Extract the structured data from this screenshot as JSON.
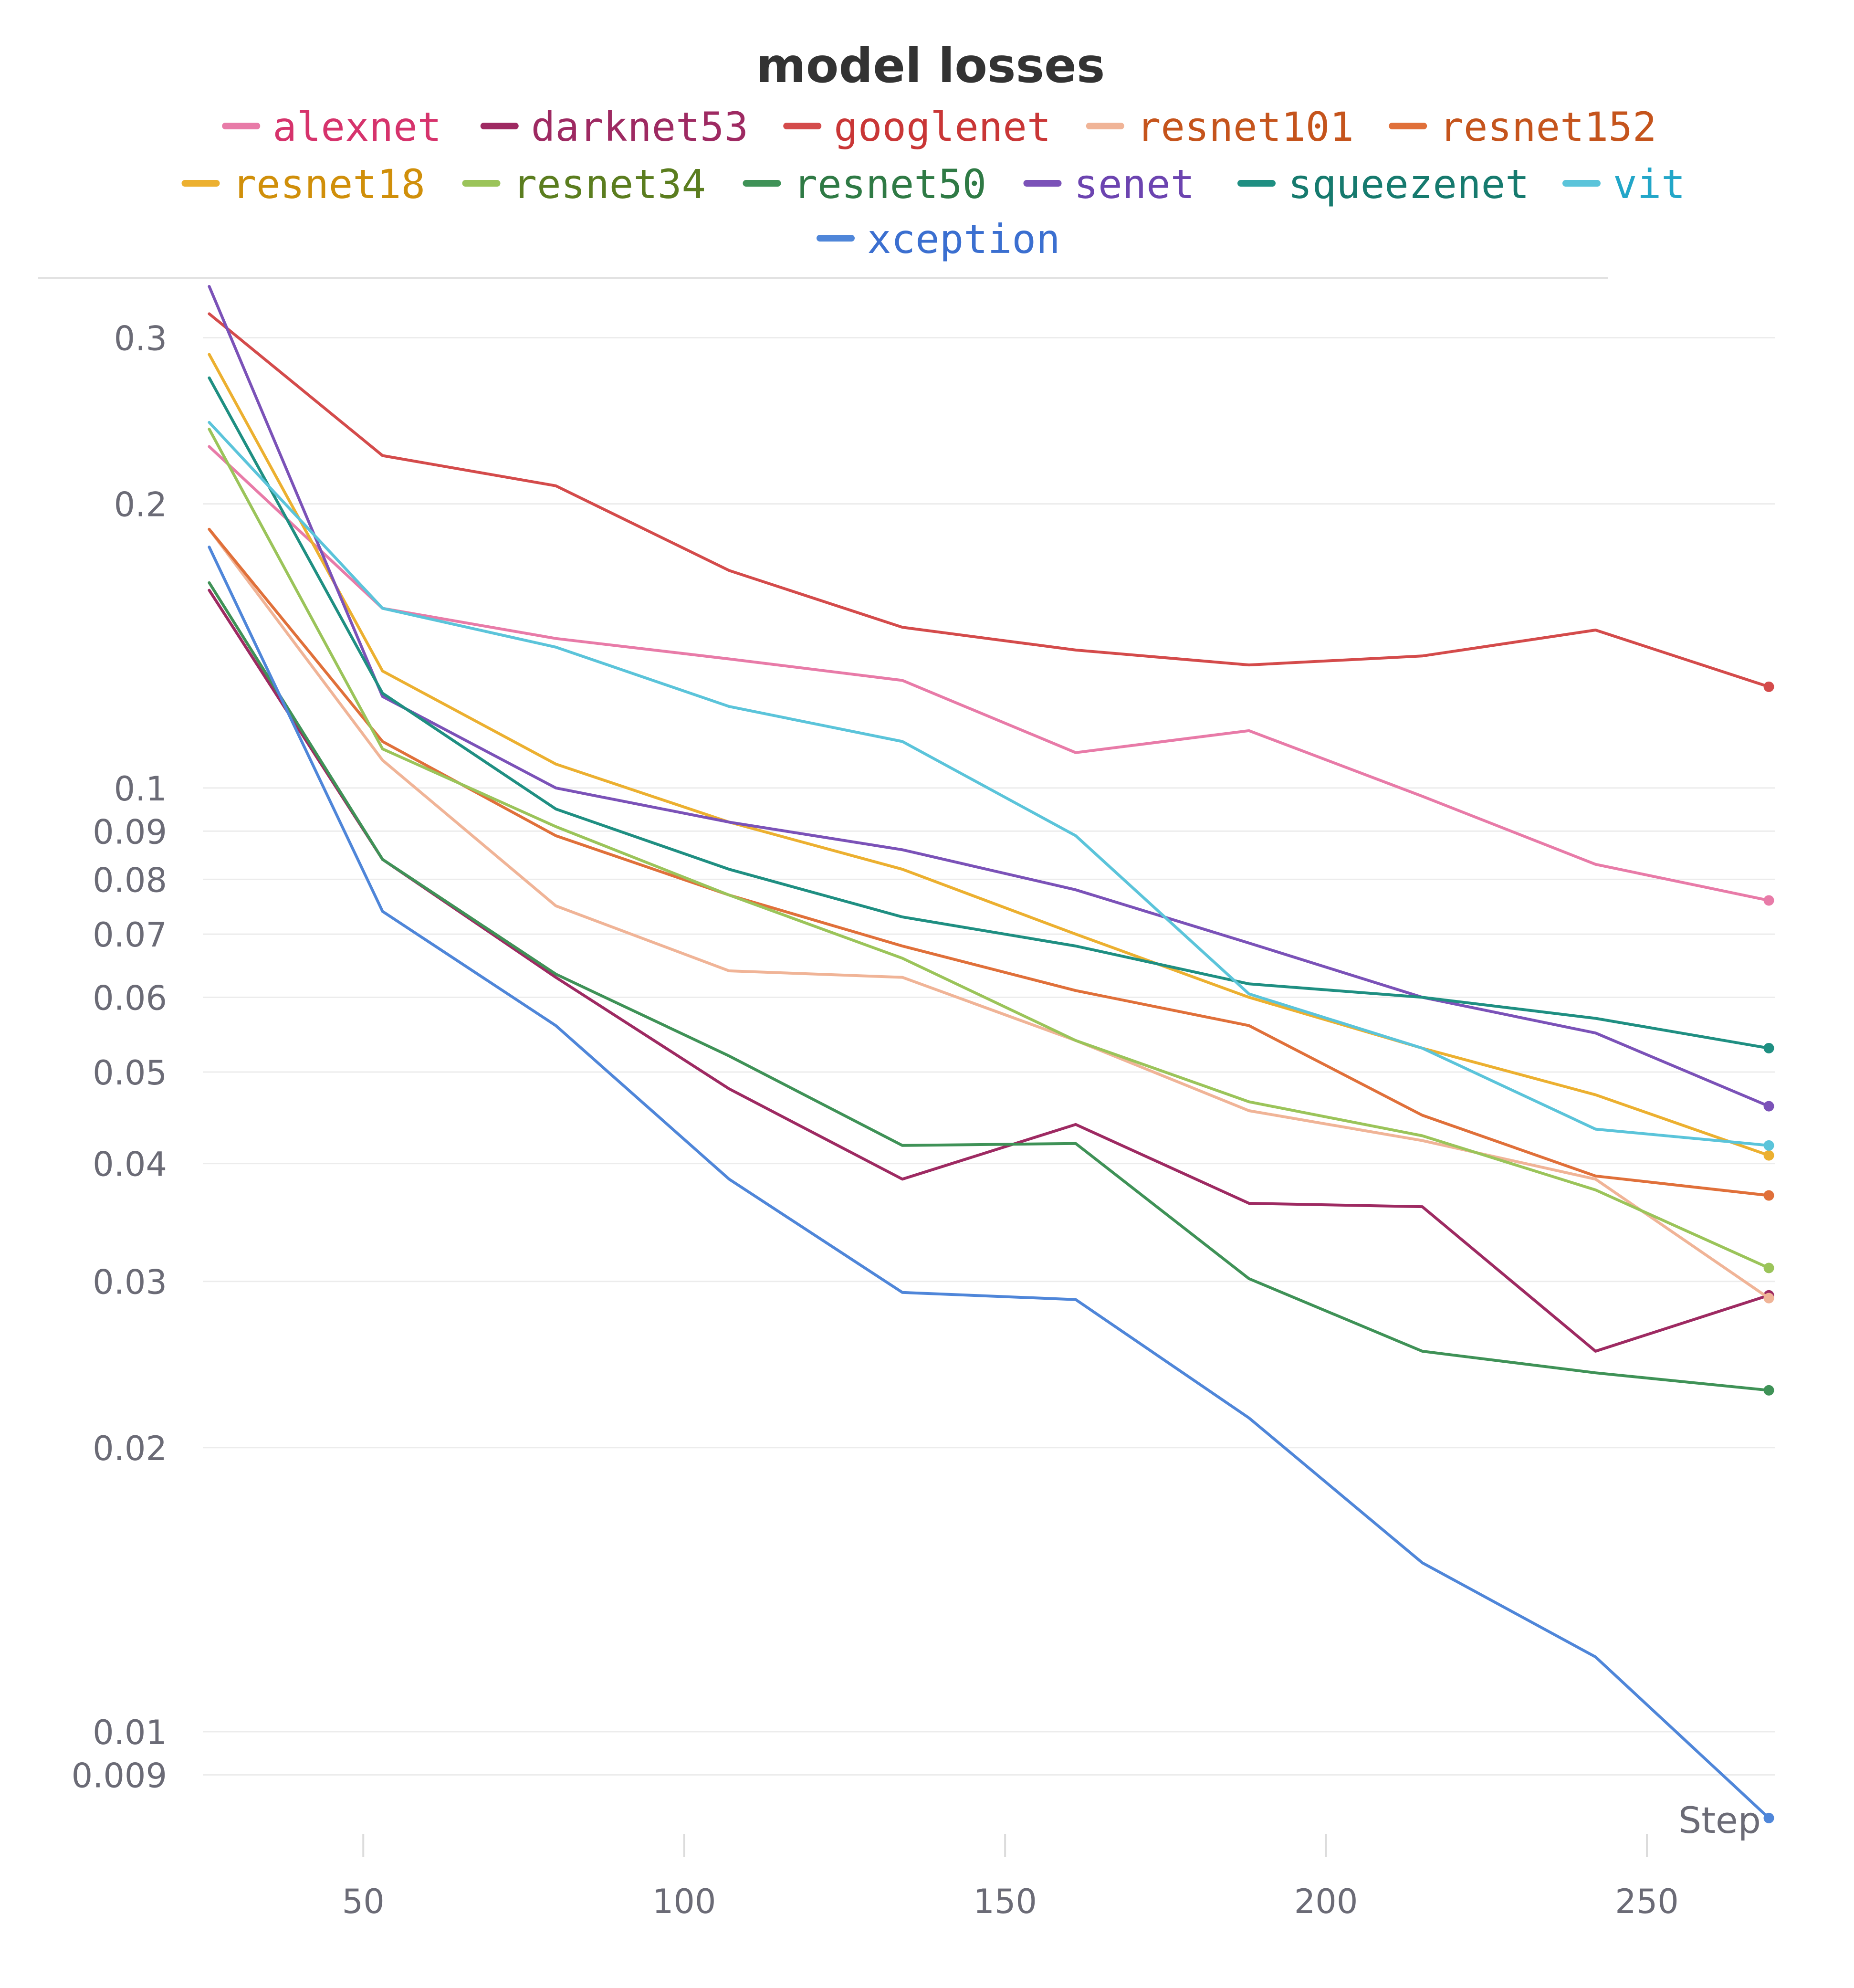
{
  "chart_data": {
    "type": "line",
    "title": "model losses",
    "xlabel": "Step",
    "ylabel": "",
    "yscale": "log",
    "xlim": [
      25,
      270
    ],
    "ylim": [
      0.0075,
      0.34
    ],
    "x_ticks": [
      50,
      100,
      150,
      200,
      250
    ],
    "x_tick_labels": [
      "50",
      "100",
      "150",
      "200",
      "250"
    ],
    "y_ticks": [
      0.3,
      0.2,
      0.1,
      0.09,
      0.08,
      0.07,
      0.06,
      0.05,
      0.04,
      0.03,
      0.02,
      0.01,
      0.009
    ],
    "y_tick_labels": [
      "0.3",
      "0.2",
      "0.1",
      "0.09",
      "0.08",
      "0.07",
      "0.06",
      "0.05",
      "0.04",
      "0.03",
      "0.02",
      "0.01",
      "0.009"
    ],
    "grid": true,
    "legend_position": "top",
    "x": [
      26,
      53,
      80,
      107,
      134,
      161,
      188,
      215,
      242,
      269
    ],
    "series": [
      {
        "name": "alexnet",
        "color": "#e87ba8",
        "label_color": "#d6336c",
        "values": [
          0.23,
          0.155,
          0.144,
          0.137,
          0.13,
          0.109,
          0.115,
          0.098,
          0.083,
          0.076
        ]
      },
      {
        "name": "darknet53",
        "color": "#9e2a62",
        "label_color": "#9e2a62",
        "values": [
          0.162,
          0.084,
          0.063,
          0.048,
          0.0385,
          0.044,
          0.0363,
          0.036,
          0.0253,
          0.029
        ]
      },
      {
        "name": "googlenet",
        "color": "#d44b4b",
        "label_color": "#c93636",
        "values": [
          0.318,
          0.225,
          0.209,
          0.17,
          0.148,
          0.14,
          0.135,
          0.138,
          0.147,
          0.128
        ]
      },
      {
        "name": "resnet101",
        "color": "#f0b497",
        "label_color": "#c5541c",
        "values": [
          0.188,
          0.107,
          0.075,
          0.064,
          0.063,
          0.054,
          0.0455,
          0.0423,
          0.0385,
          0.0288
        ]
      },
      {
        "name": "resnet152",
        "color": "#e0703a",
        "label_color": "#c5541c",
        "values": [
          0.188,
          0.112,
          0.089,
          0.077,
          0.068,
          0.061,
          0.056,
          0.045,
          0.0388,
          0.037
        ]
      },
      {
        "name": "resnet18",
        "color": "#ecb030",
        "label_color": "#d08f0a",
        "values": [
          0.288,
          0.133,
          0.106,
          0.092,
          0.082,
          0.07,
          0.06,
          0.053,
          0.0473,
          0.0408
        ]
      },
      {
        "name": "resnet34",
        "color": "#9bc45a",
        "label_color": "#5b7d1f",
        "values": [
          0.24,
          0.11,
          0.091,
          0.077,
          0.066,
          0.054,
          0.0465,
          0.0428,
          0.0375,
          0.031
        ]
      },
      {
        "name": "resnet50",
        "color": "#3f9257",
        "label_color": "#2f7a45",
        "values": [
          0.165,
          0.084,
          0.0635,
          0.052,
          0.0418,
          0.042,
          0.0302,
          0.0253,
          0.024,
          0.023
        ]
      },
      {
        "name": "senet",
        "color": "#7b52b8",
        "label_color": "#6c44b0",
        "values": [
          0.34,
          0.125,
          0.1,
          0.092,
          0.086,
          0.078,
          0.0685,
          0.06,
          0.055,
          0.046
        ]
      },
      {
        "name": "squeezenet",
        "color": "#1f8f82",
        "label_color": "#167a6e",
        "values": [
          0.272,
          0.126,
          0.095,
          0.082,
          0.073,
          0.068,
          0.062,
          0.06,
          0.057,
          0.053
        ]
      },
      {
        "name": "vit",
        "color": "#5bc4da",
        "label_color": "#22a6c8",
        "values": [
          0.244,
          0.155,
          0.141,
          0.122,
          0.112,
          0.089,
          0.0605,
          0.053,
          0.0435,
          0.0418
        ]
      },
      {
        "name": "xception",
        "color": "#4f86d9",
        "label_color": "#3b6fd0",
        "values": [
          0.18,
          0.074,
          0.056,
          0.0385,
          0.0292,
          0.0287,
          0.0215,
          0.0151,
          0.012,
          0.0081
        ]
      }
    ]
  }
}
